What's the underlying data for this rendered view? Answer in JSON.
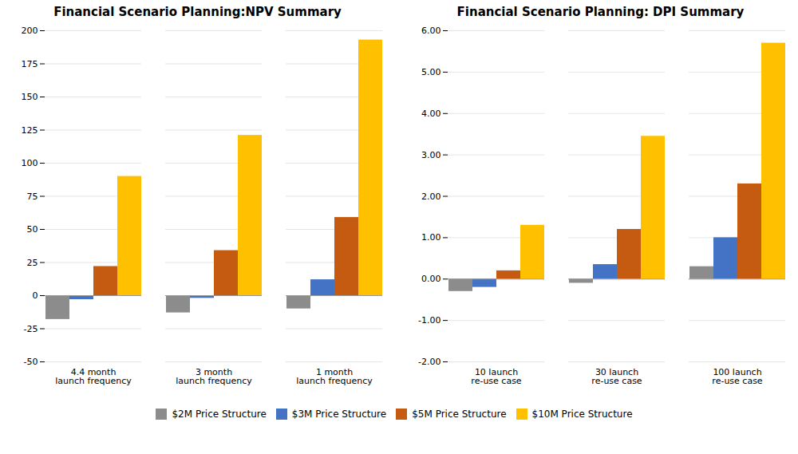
{
  "chart_data": [
    {
      "type": "bar",
      "title": "Financial Scenario Planning:NPV Summary",
      "categories": [
        "4.4 month\nlaunch frequency",
        "3 month\nlaunch frequency",
        "1 month\nlaunch frequency"
      ],
      "series": [
        {
          "name": "$2M Price Structure",
          "color": "#8c8c8c",
          "values": [
            -18,
            -13,
            -10
          ]
        },
        {
          "name": "$3M Price Structure",
          "color": "#4472c4",
          "values": [
            -3,
            -2,
            12
          ]
        },
        {
          "name": "$5M Price Structure",
          "color": "#c55a11",
          "values": [
            22,
            34,
            59
          ]
        },
        {
          "name": "$10M Price Structure",
          "color": "#ffc000",
          "values": [
            90,
            121,
            193
          ]
        }
      ],
      "ylim": [
        -50,
        200
      ],
      "yticks": [
        -50,
        -25,
        0,
        25,
        50,
        75,
        100,
        125,
        150,
        175,
        200
      ],
      "grid": true,
      "legend": "bottom"
    },
    {
      "type": "bar",
      "title": "Financial Scenario Planning: DPI Summary",
      "categories": [
        "10 launch\nre-use case",
        "30 launch\nre-use case",
        "100 launch\nre-use case"
      ],
      "series": [
        {
          "name": "$2M Price Structure",
          "color": "#8c8c8c",
          "values": [
            -0.3,
            -0.1,
            0.3
          ]
        },
        {
          "name": "$3M Price Structure",
          "color": "#4472c4",
          "values": [
            -0.2,
            0.35,
            1.0
          ]
        },
        {
          "name": "$5M Price Structure",
          "color": "#c55a11",
          "values": [
            0.2,
            1.2,
            2.3
          ]
        },
        {
          "name": "$10M Price Structure",
          "color": "#ffc000",
          "values": [
            1.3,
            3.45,
            5.7
          ]
        }
      ],
      "ylim": [
        -2.0,
        6.0
      ],
      "yticks": [
        {
          "value": -2.0,
          "label": "-2.00"
        },
        {
          "value": -1.0,
          "label": "-1.00"
        },
        {
          "value": 0.0,
          "label": "0.00"
        },
        {
          "value": 1.0,
          "label": "1.00"
        },
        {
          "value": 2.0,
          "label": "2.00"
        },
        {
          "value": 3.0,
          "label": "3.00"
        },
        {
          "value": 4.0,
          "label": "4.00"
        },
        {
          "value": 5.0,
          "label": "5.00"
        },
        {
          "value": 6.0,
          "label": "6.00"
        }
      ],
      "grid": true,
      "legend": "bottom"
    }
  ]
}
